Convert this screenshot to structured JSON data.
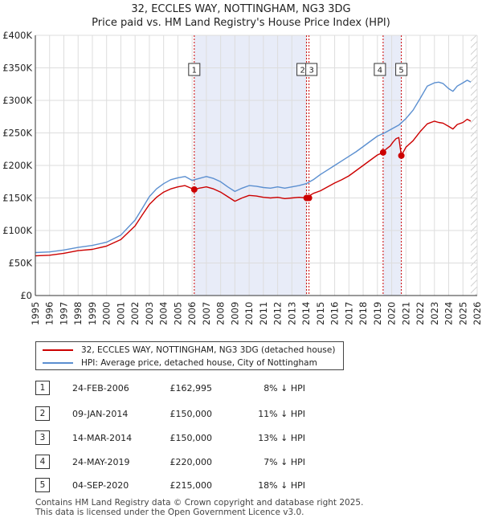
{
  "chart_data": {
    "type": "line",
    "title": "32, ECCLES WAY, NOTTINGHAM, NG3 3DG",
    "subtitle": "Price paid vs. HM Land Registry's House Price Index (HPI)",
    "xlim": [
      1995,
      2026
    ],
    "ylim": [
      0,
      400000
    ],
    "y_ticks": [
      0,
      50000,
      100000,
      150000,
      200000,
      250000,
      300000,
      350000,
      400000
    ],
    "y_tick_labels": [
      "£0",
      "£50K",
      "£100K",
      "£150K",
      "£200K",
      "£250K",
      "£300K",
      "£350K",
      "£400K"
    ],
    "x_ticks": [
      1995,
      1996,
      1997,
      1998,
      1999,
      2000,
      2001,
      2002,
      2003,
      2004,
      2005,
      2006,
      2007,
      2008,
      2009,
      2010,
      2011,
      2012,
      2013,
      2014,
      2015,
      2016,
      2017,
      2018,
      2019,
      2020,
      2021,
      2022,
      2023,
      2024,
      2025,
      2026
    ],
    "shaded_periods": [
      [
        2006.15,
        2014.03
      ],
      [
        2019.4,
        2020.68
      ]
    ],
    "hatched_from": 2025.55,
    "series": [
      {
        "name": "32, ECCLES WAY, NOTTINGHAM, NG3 3DG (detached house)",
        "color": "#cc0000",
        "x": [
          1995.0,
          1996.0,
          1997.0,
          1998.0,
          1999.0,
          2000.0,
          2001.0,
          2002.0,
          2002.5,
          2003.0,
          2003.5,
          2004.0,
          2004.5,
          2005.0,
          2005.5,
          2006.15,
          2006.5,
          2007.0,
          2007.5,
          2008.0,
          2008.5,
          2009.0,
          2009.5,
          2010.0,
          2010.5,
          2011.0,
          2011.5,
          2012.0,
          2012.5,
          2013.0,
          2013.5,
          2014.03,
          2014.2,
          2014.5,
          2015.0,
          2015.5,
          2016.0,
          2016.5,
          2017.0,
          2017.5,
          2018.0,
          2018.5,
          2019.0,
          2019.4,
          2019.6,
          2019.9,
          2020.1,
          2020.3,
          2020.5,
          2020.68,
          2021.0,
          2021.5,
          2022.0,
          2022.5,
          2023.0,
          2023.3,
          2023.6,
          2024.0,
          2024.3,
          2024.6,
          2025.0,
          2025.3,
          2025.55
        ],
        "values": [
          61000,
          62000,
          65000,
          69000,
          71000,
          76000,
          86000,
          107000,
          124000,
          140000,
          151000,
          159000,
          164000,
          167000,
          169000,
          162995,
          165000,
          167000,
          164000,
          159000,
          152000,
          145000,
          150000,
          154000,
          153000,
          151000,
          150000,
          151000,
          149000,
          150000,
          151000,
          150000,
          153000,
          157000,
          161000,
          167000,
          173000,
          178000,
          184000,
          192000,
          200000,
          208000,
          216000,
          220000,
          225000,
          230000,
          236000,
          241000,
          243000,
          215000,
          228000,
          238000,
          252000,
          264000,
          268000,
          266000,
          265000,
          260000,
          256000,
          263000,
          266000,
          271000,
          268000
        ]
      },
      {
        "name": "HPI: Average price, detached house, City of Nottingham",
        "color": "#5b8fd0",
        "x": [
          1995.0,
          1996.0,
          1997.0,
          1998.0,
          1999.0,
          2000.0,
          2001.0,
          2002.0,
          2002.5,
          2003.0,
          2003.5,
          2004.0,
          2004.5,
          2005.0,
          2005.5,
          2006.0,
          2006.5,
          2007.0,
          2007.5,
          2008.0,
          2008.5,
          2009.0,
          2009.5,
          2010.0,
          2010.5,
          2011.0,
          2011.5,
          2012.0,
          2012.5,
          2013.0,
          2013.5,
          2014.0,
          2014.5,
          2015.0,
          2015.5,
          2016.0,
          2016.5,
          2017.0,
          2017.5,
          2018.0,
          2018.5,
          2019.0,
          2019.5,
          2020.0,
          2020.5,
          2021.0,
          2021.5,
          2022.0,
          2022.5,
          2023.0,
          2023.3,
          2023.6,
          2024.0,
          2024.3,
          2024.6,
          2025.0,
          2025.3,
          2025.55
        ],
        "values": [
          66000,
          67000,
          70000,
          74000,
          77000,
          82000,
          93000,
          116000,
          134000,
          152000,
          164000,
          172000,
          178000,
          181000,
          183000,
          177000,
          180000,
          183000,
          180000,
          175000,
          167000,
          160000,
          165000,
          169000,
          168000,
          166000,
          165000,
          167000,
          165000,
          167000,
          169000,
          172000,
          178000,
          186000,
          193000,
          200000,
          207000,
          214000,
          221000,
          229000,
          237000,
          245000,
          250000,
          256000,
          262000,
          272000,
          285000,
          303000,
          322000,
          327000,
          328000,
          326000,
          318000,
          314000,
          322000,
          327000,
          331000,
          328000
        ]
      }
    ],
    "sales": [
      {
        "label": "1",
        "x": 2006.15,
        "value": 162995
      },
      {
        "label": "2",
        "x": 2014.03,
        "value": 150000
      },
      {
        "label": "3",
        "x": 2014.2,
        "value": 150000
      },
      {
        "label": "4",
        "x": 2019.4,
        "value": 220000
      },
      {
        "label": "5",
        "x": 2020.68,
        "value": 215000
      }
    ],
    "markers": [
      {
        "label": "1",
        "x": 2006.15
      },
      {
        "label": "2",
        "x": 2014.03
      },
      {
        "label": "3",
        "x": 2014.2
      },
      {
        "label": "4",
        "x": 2019.4
      },
      {
        "label": "5",
        "x": 2020.68
      }
    ],
    "colors": {
      "red": "#cc0000",
      "blue": "#5b8fd0",
      "shade": "#e8ecf8",
      "grid": "#dddddd"
    }
  },
  "legend": {
    "property": "32, ECCLES WAY, NOTTINGHAM, NG3 3DG (detached house)",
    "hpi": "HPI: Average price, detached house, City of Nottingham"
  },
  "transactions": [
    {
      "num": "1",
      "date": "24-FEB-2006",
      "price": "£162,995",
      "hpi": "8% ↓ HPI"
    },
    {
      "num": "2",
      "date": "09-JAN-2014",
      "price": "£150,000",
      "hpi": "11% ↓ HPI"
    },
    {
      "num": "3",
      "date": "14-MAR-2014",
      "price": "£150,000",
      "hpi": "13% ↓ HPI"
    },
    {
      "num": "4",
      "date": "24-MAY-2019",
      "price": "£220,000",
      "hpi": "7% ↓ HPI"
    },
    {
      "num": "5",
      "date": "04-SEP-2020",
      "price": "£215,000",
      "hpi": "18% ↓ HPI"
    }
  ],
  "footer": {
    "line1": "Contains HM Land Registry data © Crown copyright and database right 2025.",
    "line2": "This data is licensed under the Open Government Licence v3.0."
  }
}
